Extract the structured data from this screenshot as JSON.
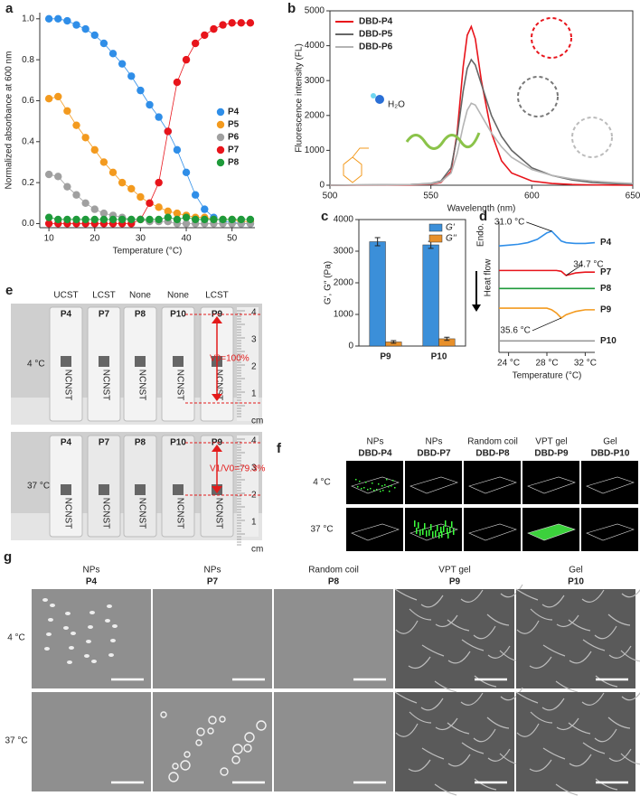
{
  "chart_data": [
    {
      "type": "line",
      "label": "a",
      "x_label": "Temperature (°C)",
      "y_label": "Normalized absorbance at 600 nm",
      "markers": true,
      "legend": "right",
      "x": [
        10,
        12,
        14,
        16,
        18,
        20,
        22,
        24,
        26,
        28,
        30,
        32,
        34,
        36,
        38,
        40,
        42,
        44,
        46,
        48,
        50,
        52,
        54
      ],
      "xlim": [
        8,
        55
      ],
      "xticks": [
        10,
        20,
        30,
        40,
        50
      ],
      "ylim": [
        -0.02,
        1.03
      ],
      "yticks": [
        {
          "value": 0,
          "label": "0.0"
        },
        0.2,
        0.4,
        0.6,
        0.8,
        {
          "value": 1,
          "label": "1.0"
        }
      ],
      "series": [
        {
          "name": "P4",
          "color": "#2f8ee8",
          "values": [
            1.0,
            1.0,
            0.99,
            0.97,
            0.95,
            0.92,
            0.88,
            0.83,
            0.78,
            0.72,
            0.65,
            0.58,
            0.52,
            0.45,
            0.36,
            0.25,
            0.14,
            0.07,
            0.03,
            0.01,
            0.005,
            0,
            0
          ]
        },
        {
          "name": "P5",
          "color": "#f39a1e",
          "values": [
            0.61,
            0.62,
            0.55,
            0.48,
            0.42,
            0.36,
            0.3,
            0.25,
            0.2,
            0.17,
            0.13,
            0.1,
            0.08,
            0.06,
            0.05,
            0.04,
            0.03,
            0.03,
            0.02,
            0.02,
            0.02,
            0.01,
            0.01
          ]
        },
        {
          "name": "P6",
          "color": "#a0a0a0",
          "values": [
            0.24,
            0.23,
            0.18,
            0.14,
            0.1,
            0.07,
            0.05,
            0.04,
            0.03,
            0.02,
            0.02,
            0.01,
            0.01,
            0.01,
            0,
            0,
            0,
            0,
            0,
            0,
            0,
            0,
            0
          ]
        },
        {
          "name": "P7",
          "color": "#e8141b",
          "values": [
            0,
            0,
            0,
            0,
            0,
            0,
            0,
            0,
            0,
            0,
            0.02,
            0.1,
            0.2,
            0.45,
            0.69,
            0.8,
            0.88,
            0.92,
            0.95,
            0.97,
            0.98,
            0.98,
            0.98
          ]
        },
        {
          "name": "P8",
          "color": "#1e9a3a",
          "values": [
            0.03,
            0.02,
            0.02,
            0.02,
            0.02,
            0.02,
            0.02,
            0.02,
            0.02,
            0.02,
            0.02,
            0.02,
            0.02,
            0.03,
            0.02,
            0.03,
            0.02,
            0.02,
            0.02,
            0.02,
            0.02,
            0.02,
            0.02
          ]
        }
      ]
    },
    {
      "type": "line",
      "label": "b",
      "x_label": "Wavelength (nm)",
      "y_label": "Fluorescence intensity (FL)",
      "annotation": "H₂O",
      "legend": "upper left",
      "x": [
        500,
        540,
        550,
        555,
        560,
        563,
        566,
        568,
        570,
        572,
        575,
        580,
        585,
        590,
        600,
        610,
        620,
        630,
        640,
        650
      ],
      "xlim": [
        500,
        650
      ],
      "xticks": [
        500,
        550,
        600,
        650
      ],
      "ylim": [
        0,
        5000
      ],
      "yticks": [
        0,
        1000,
        2000,
        3000,
        4000,
        5000
      ],
      "series": [
        {
          "name": "DBD-P4",
          "color": "#e8141b",
          "values": [
            0,
            10,
            30,
            80,
            400,
            1500,
            3400,
            4300,
            4550,
            4200,
            3000,
            1500,
            700,
            350,
            120,
            50,
            20,
            10,
            5,
            0
          ]
        },
        {
          "name": "DBD-P5",
          "color": "#666666",
          "values": [
            0,
            20,
            50,
            120,
            500,
            1400,
            2700,
            3350,
            3600,
            3450,
            2900,
            2000,
            1400,
            1000,
            500,
            280,
            150,
            80,
            50,
            30
          ]
        },
        {
          "name": "DBD-P6",
          "color": "#b4b4b4",
          "values": [
            0,
            20,
            40,
            100,
            350,
            900,
            1700,
            2150,
            2350,
            2300,
            2000,
            1500,
            1100,
            800,
            450,
            280,
            180,
            120,
            80,
            50
          ]
        }
      ]
    },
    {
      "type": "bar",
      "label": "c",
      "y_label": "G′, G″ (Pa)",
      "legend": "upper right",
      "categories": [
        "P9",
        "P10"
      ],
      "ylim": [
        0,
        4000
      ],
      "yticks": [
        0,
        1000,
        2000,
        3000,
        4000
      ],
      "series": [
        {
          "name": "G'",
          "color": "#3b8fd9",
          "values": [
            3300,
            3200
          ],
          "errors": [
            130,
            110
          ]
        },
        {
          "name": "G''",
          "color": "#e8902a",
          "values": [
            130,
            230
          ],
          "errors": [
            40,
            50
          ]
        }
      ]
    },
    {
      "type": "line",
      "label": "d",
      "x_label": "Temperature (°C)",
      "y_label": "Heat flow",
      "endo_label": "Endo.",
      "legend": "line end",
      "x": [
        23,
        24,
        25,
        26,
        27,
        28,
        28.5,
        29,
        29.5,
        30,
        31,
        32,
        33
      ],
      "xlim": [
        23,
        33
      ],
      "xticks": [
        {
          "value": 24,
          "label": "24 °C"
        },
        {
          "value": 28,
          "label": "28 °C"
        },
        {
          "value": 32,
          "label": "32 °C"
        }
      ],
      "ylim": [
        2,
        10
      ],
      "annotations": [
        "31.0 °C",
        "34.7 °C",
        "35.6 °C"
      ],
      "series": [
        {
          "name": "P4",
          "color": "#2f8ee8",
          "values": [
            8.5,
            8.55,
            8.6,
            8.7,
            8.9,
            9.3,
            9.4,
            9.1,
            8.8,
            8.7,
            8.65,
            8.65,
            8.7
          ]
        },
        {
          "name": "P7",
          "color": "#e8141b",
          "values": [
            7.0,
            7.0,
            7.0,
            7.0,
            7.0,
            7.0,
            7.0,
            7.0,
            6.95,
            6.7,
            6.85,
            6.9,
            6.9
          ]
        },
        {
          "name": "P8",
          "color": "#1e9a3a",
          "values": [
            5.9,
            5.9,
            5.9,
            5.9,
            5.9,
            5.9,
            5.9,
            5.9,
            5.9,
            5.9,
            5.9,
            5.9,
            5.9
          ]
        },
        {
          "name": "P9",
          "color": "#f39a1e",
          "values": [
            4.7,
            4.7,
            4.7,
            4.7,
            4.7,
            4.7,
            4.6,
            4.4,
            4.1,
            4.3,
            4.5,
            4.6,
            4.6
          ]
        },
        {
          "name": "P10",
          "color": "#999999",
          "values": [
            2.7,
            2.7,
            2.7,
            2.7,
            2.7,
            2.7,
            2.7,
            2.7,
            2.7,
            2.7,
            2.7,
            2.7,
            2.7
          ]
        }
      ]
    }
  ],
  "photo_panels": {
    "e": {
      "letter": "e",
      "column_types": [
        "UCST",
        "LCST",
        "None",
        "None",
        "LCST"
      ],
      "samples": [
        "P4",
        "P7",
        "P8",
        "P10",
        "P9"
      ],
      "rows": [
        "4 °C",
        "37 °C"
      ],
      "vial_text": "NCNST",
      "ruler_unit": "cm",
      "ruler_marks": [
        "4",
        "3",
        "2",
        "1"
      ],
      "volume_labels": [
        "V0=100%",
        "V1/V0=79.3%"
      ]
    },
    "f": {
      "letter": "f",
      "rows": [
        "4 °C",
        "37 °C"
      ],
      "columns": [
        {
          "type": "NPs",
          "name": "DBD-P4"
        },
        {
          "type": "NPs",
          "name": "DBD-P7"
        },
        {
          "type": "Random coil",
          "name": "DBD-P8"
        },
        {
          "type": "VPT gel",
          "name": "DBD-P9"
        },
        {
          "type": "Gel",
          "name": "DBD-P10"
        }
      ]
    },
    "g": {
      "letter": "g",
      "rows": [
        "4 °C",
        "37 °C"
      ],
      "columns": [
        {
          "type": "NPs",
          "name": "P4"
        },
        {
          "type": "NPs",
          "name": "P7"
        },
        {
          "type": "Random coil",
          "name": "P8"
        },
        {
          "type": "VPT gel",
          "name": "P9"
        },
        {
          "type": "Gel",
          "name": "P10"
        }
      ]
    }
  }
}
